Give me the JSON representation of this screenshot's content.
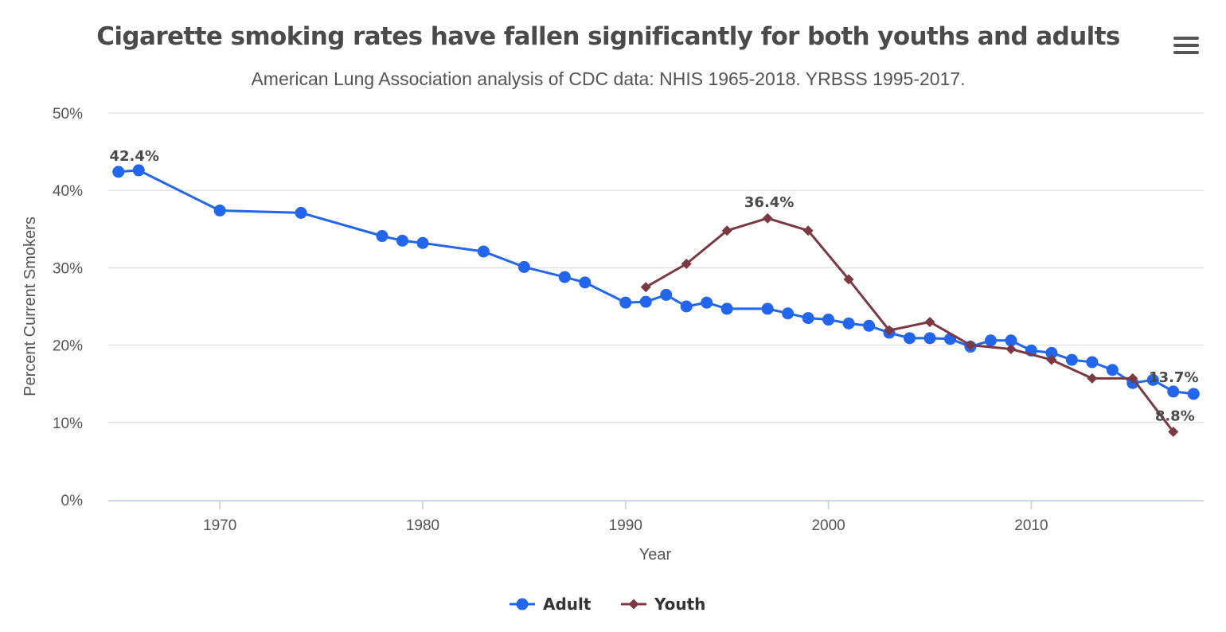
{
  "header": {
    "title": "Cigarette smoking rates have fallen significantly for both youths and adults",
    "subtitle": "American Lung Association analysis of CDC data: NHIS 1965-2018. YRBSS 1995-2017.",
    "menu_icon": "hamburger-menu-icon"
  },
  "chart_data": {
    "type": "line",
    "title": "Cigarette smoking rates have fallen significantly for both youths and adults",
    "subtitle": "American Lung Association analysis of CDC data: NHIS 1965-2018. YRBSS 1995-2017.",
    "xlabel": "Year",
    "ylabel": "Percent Current Smokers",
    "xlim": [
      1964.5,
      2018.5
    ],
    "ylim": [
      0,
      50
    ],
    "x_ticks": [
      1970,
      1980,
      1990,
      2000,
      2010
    ],
    "x_tick_labels": [
      "1970",
      "1980",
      "1990",
      "2000",
      "2010"
    ],
    "y_ticks": [
      0,
      10,
      20,
      30,
      40,
      50
    ],
    "y_tick_labels": [
      "0%",
      "10%",
      "20%",
      "30%",
      "40%",
      "50%"
    ],
    "grid": true,
    "legend_position": "bottom-center",
    "series": [
      {
        "name": "Adult",
        "color": "#2266ee",
        "marker": "circle",
        "points": [
          [
            1965,
            42.4
          ],
          [
            1966,
            42.6
          ],
          [
            1970,
            37.4
          ],
          [
            1974,
            37.1
          ],
          [
            1978,
            34.1
          ],
          [
            1979,
            33.5
          ],
          [
            1980,
            33.2
          ],
          [
            1983,
            32.1
          ],
          [
            1985,
            30.1
          ],
          [
            1987,
            28.8
          ],
          [
            1988,
            28.1
          ],
          [
            1990,
            25.5
          ],
          [
            1991,
            25.6
          ],
          [
            1992,
            26.5
          ],
          [
            1993,
            25.0
          ],
          [
            1994,
            25.5
          ],
          [
            1995,
            24.7
          ],
          [
            1997,
            24.7
          ],
          [
            1998,
            24.1
          ],
          [
            1999,
            23.5
          ],
          [
            2000,
            23.3
          ],
          [
            2001,
            22.8
          ],
          [
            2002,
            22.5
          ],
          [
            2003,
            21.6
          ],
          [
            2004,
            20.9
          ],
          [
            2005,
            20.9
          ],
          [
            2006,
            20.8
          ],
          [
            2007,
            19.8
          ],
          [
            2008,
            20.6
          ],
          [
            2009,
            20.6
          ],
          [
            2010,
            19.3
          ],
          [
            2011,
            19.0
          ],
          [
            2012,
            18.1
          ],
          [
            2013,
            17.8
          ],
          [
            2014,
            16.8
          ],
          [
            2015,
            15.1
          ],
          [
            2016,
            15.5
          ],
          [
            2017,
            14.0
          ],
          [
            2018,
            13.7
          ]
        ]
      },
      {
        "name": "Youth",
        "color": "#7b3a42",
        "marker": "diamond",
        "points": [
          [
            1991,
            27.5
          ],
          [
            1993,
            30.5
          ],
          [
            1995,
            34.8
          ],
          [
            1997,
            36.4
          ],
          [
            1999,
            34.8
          ],
          [
            2001,
            28.5
          ],
          [
            2003,
            21.9
          ],
          [
            2005,
            23.0
          ],
          [
            2007,
            20.0
          ],
          [
            2009,
            19.5
          ],
          [
            2011,
            18.1
          ],
          [
            2013,
            15.7
          ],
          [
            2015,
            15.7
          ],
          [
            2017,
            8.8
          ]
        ]
      }
    ],
    "annotations": [
      {
        "series": "Adult",
        "x": 1965,
        "label": "42.4%"
      },
      {
        "series": "Youth",
        "x": 1997,
        "label": "36.4%"
      },
      {
        "series": "Adult",
        "x": 2018,
        "label": "13.7%"
      },
      {
        "series": "Youth",
        "x": 2017,
        "label": "8.8%"
      }
    ]
  }
}
